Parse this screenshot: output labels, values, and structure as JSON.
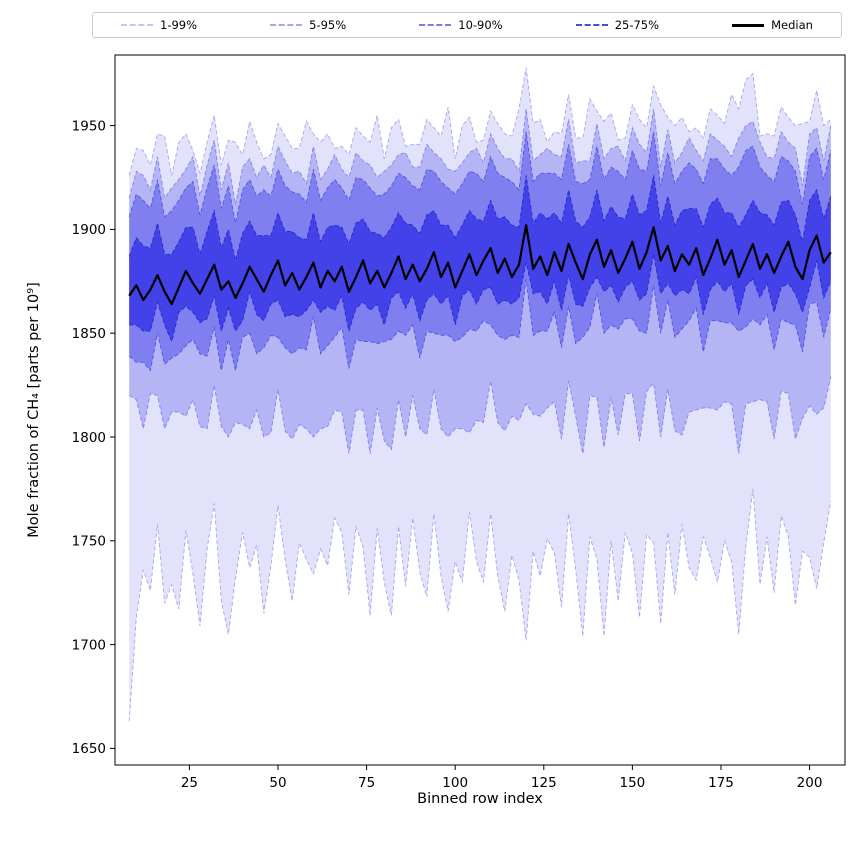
{
  "chart_data": {
    "type": "area",
    "title": "",
    "xlabel": "Binned row index",
    "ylabel": "Mole fraction of CH₄ [parts per 10⁹]",
    "xlim": [
      4,
      210
    ],
    "ylim": [
      1642,
      1984
    ],
    "xticks": [
      25,
      50,
      75,
      100,
      125,
      150,
      175,
      200
    ],
    "yticks": [
      1650,
      1700,
      1750,
      1800,
      1850,
      1900,
      1950
    ],
    "grid": false,
    "legend_position": "top-outside",
    "median_color": "#000000",
    "legend": [
      {
        "label": "1-99%",
        "color": "#c4c4f0",
        "style": "dashed"
      },
      {
        "label": "5-95%",
        "color": "#a6a6ea",
        "style": "dashed"
      },
      {
        "label": "10-90%",
        "color": "#7b7be4",
        "style": "dashed"
      },
      {
        "label": "25-75%",
        "color": "#4949d2",
        "style": "dashed"
      },
      {
        "label": "Median",
        "color": "#000000",
        "style": "solid"
      }
    ],
    "bands": [
      {
        "label": "1-99%",
        "lower": "p01",
        "upper": "p99",
        "fill": "rgba(92,92,235,0.18)",
        "edge": "rgba(92,92,235,0.50)"
      },
      {
        "label": "5-95%",
        "lower": "p05",
        "upper": "p95",
        "fill": "rgba(92,92,235,0.33)",
        "edge": "rgba(92,92,235,0.65)"
      },
      {
        "label": "10-90%",
        "lower": "p10",
        "upper": "p90",
        "fill": "rgba(82,82,235,0.55)",
        "edge": "rgba(70,70,230,0.85)"
      },
      {
        "label": "25-75%",
        "lower": "p25",
        "upper": "p75",
        "fill": "rgba(55,55,230,0.85)",
        "edge": "rgba(40,40,210,1)"
      }
    ],
    "x": [
      8,
      10,
      12,
      14,
      16,
      18,
      20,
      22,
      24,
      26,
      28,
      30,
      32,
      34,
      36,
      38,
      40,
      42,
      44,
      46,
      48,
      50,
      52,
      54,
      56,
      58,
      60,
      62,
      64,
      66,
      68,
      70,
      72,
      74,
      76,
      78,
      80,
      82,
      84,
      86,
      88,
      90,
      92,
      94,
      96,
      98,
      100,
      102,
      104,
      106,
      108,
      110,
      112,
      114,
      116,
      118,
      120,
      122,
      124,
      126,
      128,
      130,
      132,
      134,
      136,
      138,
      140,
      142,
      144,
      146,
      148,
      150,
      152,
      154,
      156,
      158,
      160,
      162,
      164,
      166,
      168,
      170,
      172,
      174,
      176,
      178,
      180,
      182,
      184,
      186,
      188,
      190,
      192,
      194,
      196,
      198,
      200,
      202,
      204,
      206
    ],
    "series": {
      "median": [
        1868,
        1873,
        1866,
        1871,
        1878,
        1870,
        1864,
        1872,
        1880,
        1874,
        1869,
        1876,
        1883,
        1871,
        1875,
        1867,
        1874,
        1882,
        1876,
        1870,
        1878,
        1885,
        1873,
        1879,
        1871,
        1877,
        1884,
        1872,
        1880,
        1875,
        1882,
        1870,
        1877,
        1885,
        1874,
        1880,
        1872,
        1879,
        1887,
        1876,
        1883,
        1875,
        1881,
        1889,
        1877,
        1884,
        1872,
        1880,
        1888,
        1878,
        1885,
        1891,
        1879,
        1886,
        1877,
        1883,
        1902,
        1881,
        1887,
        1878,
        1889,
        1880,
        1893,
        1884,
        1876,
        1888,
        1895,
        1882,
        1890,
        1879,
        1886,
        1894,
        1881,
        1889,
        1901,
        1885,
        1892,
        1880,
        1888,
        1883,
        1891,
        1878,
        1886,
        1895,
        1883,
        1890,
        1877,
        1885,
        1893,
        1881,
        1888,
        1879,
        1887,
        1894,
        1882,
        1876,
        1890,
        1897,
        1884,
        1889
      ],
      "p25": [
        1854,
        1854,
        1851,
        1851,
        1865,
        1854,
        1846,
        1860,
        1863,
        1860,
        1855,
        1857,
        1868,
        1851,
        1862,
        1851,
        1856,
        1870,
        1859,
        1856,
        1864,
        1866,
        1858,
        1859,
        1858,
        1861,
        1866,
        1860,
        1863,
        1861,
        1868,
        1851,
        1862,
        1865,
        1861,
        1864,
        1854,
        1867,
        1870,
        1862,
        1869,
        1856,
        1866,
        1869,
        1864,
        1868,
        1854,
        1868,
        1871,
        1864,
        1871,
        1872,
        1864,
        1866,
        1864,
        1867,
        1884,
        1869,
        1870,
        1864,
        1875,
        1861,
        1878,
        1864,
        1863,
        1872,
        1877,
        1870,
        1873,
        1865,
        1872,
        1875,
        1866,
        1869,
        1888,
        1869,
        1874,
        1868,
        1871,
        1869,
        1877,
        1859,
        1871,
        1875,
        1870,
        1874,
        1859,
        1873,
        1876,
        1867,
        1874,
        1860,
        1872,
        1874,
        1869,
        1860,
        1872,
        1885,
        1867,
        1875
      ],
      "p75": [
        1887,
        1896,
        1892,
        1891,
        1903,
        1888,
        1888,
        1894,
        1901,
        1901,
        1888,
        1899,
        1909,
        1891,
        1900,
        1885,
        1898,
        1904,
        1897,
        1897,
        1897,
        1908,
        1899,
        1899,
        1896,
        1895,
        1908,
        1894,
        1901,
        1902,
        1901,
        1893,
        1903,
        1905,
        1899,
        1898,
        1896,
        1901,
        1908,
        1903,
        1902,
        1898,
        1907,
        1909,
        1902,
        1902,
        1896,
        1902,
        1909,
        1905,
        1904,
        1914,
        1905,
        1906,
        1902,
        1901,
        1926,
        1903,
        1908,
        1905,
        1908,
        1903,
        1919,
        1904,
        1901,
        1906,
        1919,
        1904,
        1911,
        1906,
        1905,
        1917,
        1907,
        1909,
        1926,
        1903,
        1916,
        1902,
        1909,
        1910,
        1910,
        1901,
        1912,
        1915,
        1908,
        1908,
        1901,
        1907,
        1914,
        1908,
        1907,
        1902,
        1913,
        1914,
        1907,
        1894,
        1914,
        1919,
        1905,
        1916
      ],
      "p10": [
        1839,
        1836,
        1836,
        1832,
        1850,
        1835,
        1838,
        1840,
        1844,
        1847,
        1840,
        1839,
        1853,
        1832,
        1847,
        1832,
        1848,
        1850,
        1840,
        1843,
        1849,
        1848,
        1843,
        1840,
        1843,
        1842,
        1858,
        1840,
        1844,
        1848,
        1853,
        1833,
        1847,
        1846,
        1846,
        1845,
        1846,
        1847,
        1851,
        1849,
        1854,
        1838,
        1851,
        1850,
        1849,
        1849,
        1846,
        1848,
        1852,
        1851,
        1856,
        1854,
        1849,
        1847,
        1849,
        1848,
        1876,
        1849,
        1851,
        1851,
        1860,
        1843,
        1863,
        1845,
        1848,
        1853,
        1869,
        1850,
        1854,
        1852,
        1857,
        1857,
        1851,
        1850,
        1873,
        1850,
        1866,
        1848,
        1852,
        1856,
        1862,
        1841,
        1856,
        1856,
        1855,
        1855,
        1851,
        1853,
        1857,
        1854,
        1859,
        1842,
        1857,
        1855,
        1854,
        1841,
        1864,
        1865,
        1848,
        1862
      ],
      "p90": [
        1906,
        1917,
        1914,
        1910,
        1924,
        1906,
        1909,
        1914,
        1920,
        1923,
        1907,
        1920,
        1931,
        1910,
        1921,
        1903,
        1919,
        1924,
        1916,
        1919,
        1916,
        1929,
        1921,
        1918,
        1917,
        1913,
        1929,
        1914,
        1920,
        1924,
        1920,
        1914,
        1925,
        1924,
        1920,
        1916,
        1917,
        1921,
        1927,
        1925,
        1921,
        1919,
        1929,
        1928,
        1923,
        1920,
        1917,
        1922,
        1928,
        1927,
        1923,
        1935,
        1927,
        1925,
        1923,
        1919,
        1947,
        1923,
        1927,
        1927,
        1927,
        1924,
        1941,
        1923,
        1922,
        1924,
        1940,
        1924,
        1930,
        1928,
        1924,
        1938,
        1929,
        1928,
        1947,
        1921,
        1937,
        1922,
        1928,
        1932,
        1929,
        1922,
        1934,
        1934,
        1929,
        1926,
        1930,
        1938,
        1940,
        1930,
        1926,
        1923,
        1935,
        1933,
        1928,
        1912,
        1935,
        1939,
        1924,
        1938
      ],
      "p05": [
        1820,
        1818,
        1804,
        1821,
        1820,
        1804,
        1812,
        1812,
        1810,
        1818,
        1805,
        1804,
        1825,
        1805,
        1800,
        1807,
        1806,
        1804,
        1813,
        1800,
        1802,
        1823,
        1803,
        1799,
        1806,
        1804,
        1800,
        1804,
        1805,
        1813,
        1812,
        1792,
        1813,
        1813,
        1792,
        1814,
        1798,
        1794,
        1818,
        1800,
        1820,
        1804,
        1801,
        1823,
        1804,
        1800,
        1804,
        1804,
        1802,
        1808,
        1807,
        1827,
        1807,
        1803,
        1810,
        1808,
        1816,
        1811,
        1810,
        1814,
        1817,
        1799,
        1827,
        1810,
        1792,
        1820,
        1819,
        1795,
        1819,
        1801,
        1821,
        1821,
        1798,
        1822,
        1826,
        1800,
        1823,
        1803,
        1801,
        1812,
        1813,
        1814,
        1814,
        1813,
        1817,
        1816,
        1792,
        1816,
        1817,
        1818,
        1817,
        1799,
        1822,
        1821,
        1799,
        1809,
        1815,
        1811,
        1814,
        1829
      ],
      "p95": [
        1915,
        1928,
        1926,
        1919,
        1935,
        1915,
        1920,
        1924,
        1929,
        1935,
        1916,
        1931,
        1943,
        1919,
        1932,
        1912,
        1930,
        1934,
        1925,
        1931,
        1925,
        1940,
        1933,
        1927,
        1928,
        1922,
        1940,
        1924,
        1929,
        1936,
        1929,
        1925,
        1937,
        1933,
        1931,
        1925,
        1928,
        1931,
        1936,
        1937,
        1930,
        1930,
        1941,
        1937,
        1934,
        1929,
        1928,
        1932,
        1937,
        1939,
        1932,
        1946,
        1939,
        1934,
        1934,
        1928,
        1958,
        1933,
        1936,
        1939,
        1936,
        1935,
        1953,
        1932,
        1933,
        1933,
        1951,
        1934,
        1939,
        1940,
        1933,
        1949,
        1941,
        1937,
        1958,
        1930,
        1948,
        1932,
        1937,
        1944,
        1938,
        1933,
        1946,
        1943,
        1940,
        1935,
        1944,
        1950,
        1952,
        1942,
        1935,
        1934,
        1947,
        1942,
        1939,
        1921,
        1946,
        1949,
        1933,
        1950
      ],
      "p01": [
        1663,
        1713,
        1736,
        1726,
        1758,
        1720,
        1729,
        1717,
        1755,
        1734,
        1709,
        1746,
        1768,
        1721,
        1705,
        1732,
        1754,
        1737,
        1748,
        1715,
        1738,
        1767,
        1741,
        1721,
        1749,
        1741,
        1734,
        1746,
        1738,
        1761,
        1754,
        1724,
        1757,
        1747,
        1714,
        1756,
        1730,
        1714,
        1757,
        1728,
        1761,
        1735,
        1723,
        1763,
        1733,
        1716,
        1740,
        1730,
        1764,
        1740,
        1730,
        1763,
        1733,
        1716,
        1743,
        1731,
        1702,
        1745,
        1733,
        1751,
        1744,
        1718,
        1763,
        1736,
        1704,
        1752,
        1741,
        1704,
        1750,
        1721,
        1754,
        1744,
        1713,
        1753,
        1749,
        1710,
        1754,
        1724,
        1758,
        1737,
        1731,
        1752,
        1742,
        1730,
        1750,
        1740,
        1705,
        1747,
        1775,
        1729,
        1752,
        1725,
        1762,
        1752,
        1719,
        1745,
        1742,
        1727,
        1749,
        1769
      ],
      "p99": [
        1926,
        1939,
        1938,
        1931,
        1946,
        1945,
        1926,
        1942,
        1946,
        1938,
        1927,
        1942,
        1955,
        1931,
        1943,
        1942,
        1936,
        1952,
        1942,
        1934,
        1936,
        1951,
        1945,
        1939,
        1939,
        1952,
        1946,
        1942,
        1946,
        1939,
        1940,
        1936,
        1949,
        1945,
        1942,
        1955,
        1934,
        1949,
        1953,
        1940,
        1941,
        1941,
        1953,
        1949,
        1945,
        1959,
        1934,
        1950,
        1954,
        1942,
        1943,
        1957,
        1951,
        1946,
        1945,
        1958,
        1978,
        1951,
        1953,
        1942,
        1947,
        1946,
        1965,
        1944,
        1944,
        1963,
        1957,
        1952,
        1956,
        1943,
        1944,
        1960,
        1953,
        1949,
        1969,
        1960,
        1954,
        1950,
        1954,
        1947,
        1949,
        1944,
        1958,
        1955,
        1951,
        1965,
        1958,
        1972,
        1975,
        1945,
        1946,
        1945,
        1959,
        1954,
        1950,
        1951,
        1952,
        1967,
        1950,
        1953
      ]
    }
  }
}
